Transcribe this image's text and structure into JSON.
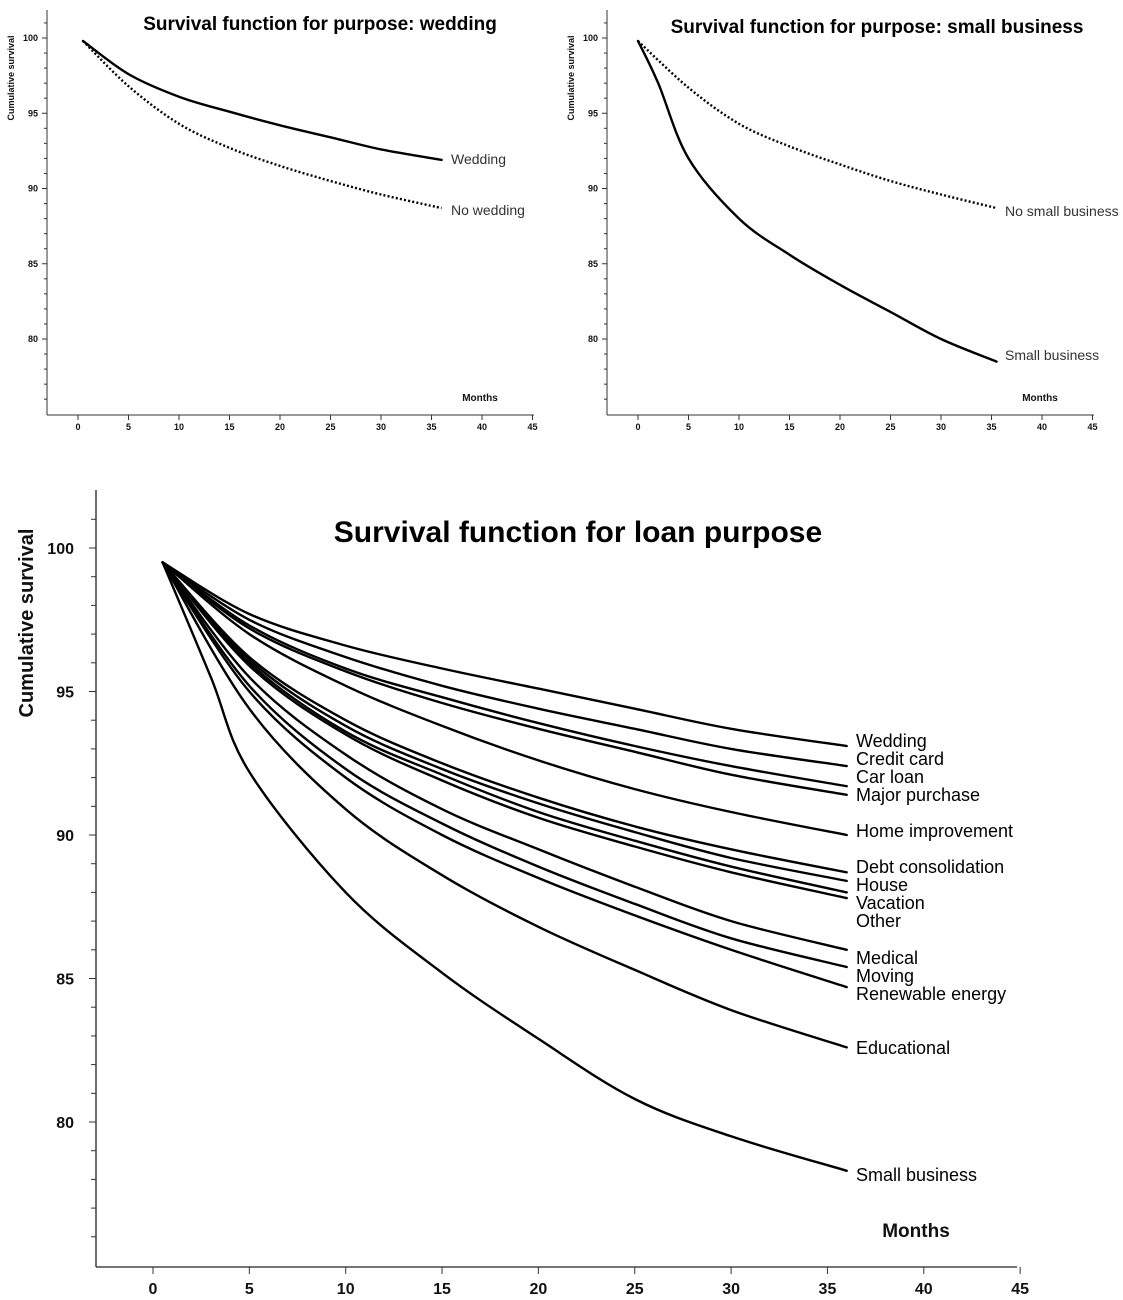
{
  "chart_data": [
    {
      "type": "line",
      "title": "Survival function for purpose: wedding",
      "xlabel": "Months",
      "ylabel": "Cumulative survival",
      "xlim": [
        -3.5,
        45
      ],
      "ylim": [
        75,
        102
      ],
      "xticks": [
        "0",
        "5",
        "10",
        "15",
        "20",
        "25",
        "30",
        "35",
        "40",
        "45"
      ],
      "yticks": [
        "80",
        "85",
        "90",
        "95",
        "100"
      ],
      "grid": false,
      "series": [
        {
          "name": "Wedding",
          "style": "solid",
          "x": [
            0.5,
            5,
            10,
            15,
            20,
            25,
            30,
            36
          ],
          "y": [
            99.8,
            97.6,
            96.1,
            95.1,
            94.2,
            93.4,
            92.6,
            91.9
          ]
        },
        {
          "name": "No wedding",
          "style": "dotted",
          "x": [
            0.5,
            5,
            10,
            15,
            20,
            25,
            30,
            36
          ],
          "y": [
            99.8,
            96.8,
            94.3,
            92.7,
            91.5,
            90.5,
            89.6,
            88.7
          ]
        }
      ]
    },
    {
      "type": "line",
      "title": "Survival function for purpose: small business",
      "xlabel": "Months",
      "ylabel": "Cumulative survival",
      "xlim": [
        -3.5,
        45
      ],
      "ylim": [
        75,
        102
      ],
      "xticks": [
        "0",
        "5",
        "10",
        "15",
        "20",
        "25",
        "30",
        "35",
        "40",
        "45"
      ],
      "yticks": [
        "80",
        "85",
        "90",
        "95",
        "100"
      ],
      "grid": false,
      "series": [
        {
          "name": "No small business",
          "style": "dotted",
          "x": [
            0,
            5,
            10,
            15,
            20,
            25,
            30,
            35.5
          ],
          "y": [
            99.8,
            96.7,
            94.3,
            92.8,
            91.6,
            90.5,
            89.6,
            88.7
          ]
        },
        {
          "name": "Small business",
          "style": "solid",
          "x": [
            0,
            2,
            5,
            10,
            15,
            20,
            25,
            30,
            35.5
          ],
          "y": [
            99.8,
            97,
            92,
            88,
            85.6,
            83.6,
            81.8,
            80,
            78.5
          ]
        }
      ]
    },
    {
      "type": "line",
      "title": "Survival function for loan purpose",
      "xlabel": "Months",
      "ylabel": "Cumulative survival",
      "xlim": [
        -3,
        45
      ],
      "ylim": [
        75,
        102
      ],
      "xticks": [
        "0",
        "5",
        "10",
        "15",
        "20",
        "25",
        "30",
        "35",
        "40",
        "45"
      ],
      "yticks": [
        "80",
        "85",
        "90",
        "95",
        "100"
      ],
      "grid": false,
      "series": [
        {
          "name": "Wedding",
          "x": [
            0.5,
            5,
            10,
            15,
            20,
            25,
            30,
            36
          ],
          "y": [
            99.5,
            97.7,
            96.6,
            95.8,
            95.1,
            94.4,
            93.7,
            93.1
          ]
        },
        {
          "name": "Credit card",
          "x": [
            0.5,
            5,
            10,
            15,
            20,
            25,
            30,
            36
          ],
          "y": [
            99.5,
            97.5,
            96.2,
            95.2,
            94.4,
            93.7,
            93,
            92.4
          ]
        },
        {
          "name": "Car loan",
          "x": [
            0.5,
            5,
            10,
            15,
            20,
            25,
            30,
            36
          ],
          "y": [
            99.5,
            97.3,
            95.8,
            94.8,
            93.9,
            93.1,
            92.4,
            91.7
          ]
        },
        {
          "name": "Major purchase",
          "x": [
            0.5,
            5,
            10,
            15,
            20,
            25,
            30,
            36
          ],
          "y": [
            99.5,
            97.2,
            95.7,
            94.6,
            93.7,
            92.9,
            92.1,
            91.4
          ]
        },
        {
          "name": "Home improvement",
          "x": [
            0.5,
            5,
            10,
            15,
            20,
            25,
            30,
            36
          ],
          "y": [
            99.5,
            97,
            95.2,
            93.8,
            92.6,
            91.6,
            90.8,
            90
          ]
        },
        {
          "name": "Debt consolidation",
          "x": [
            0.5,
            5,
            10,
            15,
            20,
            25,
            30,
            36
          ],
          "y": [
            99.5,
            96.2,
            94,
            92.5,
            91.3,
            90.3,
            89.5,
            88.7
          ]
        },
        {
          "name": "House",
          "x": [
            0.5,
            5,
            10,
            15,
            20,
            25,
            30,
            36
          ],
          "y": [
            99.5,
            96.1,
            93.8,
            92.3,
            91.1,
            90.1,
            89.2,
            88.4
          ]
        },
        {
          "name": "Vacation",
          "x": [
            0.5,
            5,
            10,
            15,
            20,
            25,
            30,
            36
          ],
          "y": [
            99.5,
            96,
            93.6,
            92.1,
            90.8,
            89.8,
            88.9,
            88
          ]
        },
        {
          "name": "Other",
          "x": [
            0.5,
            5,
            10,
            15,
            20,
            25,
            30,
            36
          ],
          "y": [
            99.5,
            95.9,
            93.5,
            91.9,
            90.6,
            89.6,
            88.7,
            87.8
          ]
        },
        {
          "name": "Medical",
          "x": [
            0.5,
            5,
            10,
            15,
            20,
            25,
            30,
            36
          ],
          "y": [
            99.5,
            95.5,
            92.8,
            90.9,
            89.5,
            88.2,
            87,
            86
          ]
        },
        {
          "name": "Moving",
          "x": [
            0.5,
            5,
            10,
            15,
            20,
            25,
            30,
            36
          ],
          "y": [
            99.5,
            95.2,
            92.3,
            90.4,
            88.9,
            87.6,
            86.4,
            85.4
          ]
        },
        {
          "name": "Renewable energy",
          "x": [
            0.5,
            5,
            10,
            15,
            20,
            25,
            30,
            36
          ],
          "y": [
            99.5,
            95,
            92,
            90,
            88.5,
            87.2,
            86,
            84.7
          ]
        },
        {
          "name": "Educational",
          "x": [
            0.5,
            5,
            10,
            15,
            20,
            25,
            30,
            36
          ],
          "y": [
            99.5,
            94.4,
            90.9,
            88.6,
            86.8,
            85.3,
            83.9,
            82.6
          ]
        },
        {
          "name": "Small business",
          "x": [
            0.5,
            3,
            5,
            10,
            15,
            20,
            25,
            30,
            36
          ],
          "y": [
            99.5,
            95.5,
            92.2,
            88,
            85.2,
            82.9,
            80.8,
            79.5,
            78.3
          ]
        }
      ]
    }
  ]
}
